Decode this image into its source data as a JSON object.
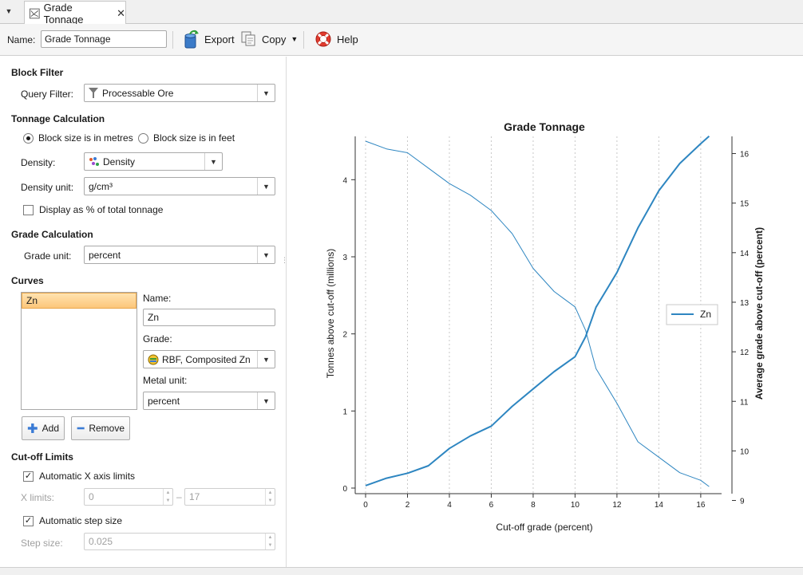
{
  "tab": {
    "label": "Grade Tonnage",
    "close": "✕",
    "menu": "▼"
  },
  "toolbar": {
    "name_label": "Name:",
    "name_value": "Grade Tonnage",
    "export_label": "Export",
    "copy_label": "Copy",
    "help_label": "Help"
  },
  "block_filter": {
    "title": "Block Filter",
    "query_filter_label": "Query Filter:",
    "query_filter_value": "Processable Ore"
  },
  "tonnage": {
    "title": "Tonnage Calculation",
    "radio_metres": "Block size is in metres",
    "radio_feet": "Block size is in feet",
    "selected": "metres",
    "density_label": "Density:",
    "density_value": "Density",
    "density_unit_label": "Density unit:",
    "density_unit_value": "g/cm³",
    "display_pct_label": "Display as % of total tonnage",
    "display_pct_checked": false
  },
  "grade": {
    "title": "Grade Calculation",
    "grade_unit_label": "Grade unit:",
    "grade_unit_value": "percent"
  },
  "curves": {
    "title": "Curves",
    "items": [
      "Zn"
    ],
    "name_label": "Name:",
    "name_value": "Zn",
    "grade_label": "Grade:",
    "grade_value": "RBF, Composited Zn",
    "metal_unit_label": "Metal unit:",
    "metal_unit_value": "percent",
    "add_label": "Add",
    "remove_label": "Remove"
  },
  "cutoff": {
    "title": "Cut-off Limits",
    "auto_x_label": "Automatic X axis limits",
    "auto_x_checked": true,
    "x_limits_label": "X limits:",
    "x_min": "0",
    "x_sep": "–",
    "x_max": "17",
    "auto_step_label": "Automatic step size",
    "auto_step_checked": true,
    "step_size_label": "Step size:",
    "step_size_value": "0.025"
  },
  "colors": {
    "series": "#2e86c1",
    "selection": "#fcc67a",
    "grid": "#c8c8c8"
  },
  "chart_data": {
    "type": "line",
    "title": "Grade Tonnage",
    "xlabel": "Cut-off grade (percent)",
    "ylabel_left": "Tonnes above cut-off (millions)",
    "ylabel_right": "Average grade above cut-off (percent)",
    "xlim": [
      0,
      16.5
    ],
    "ylim_left": [
      0,
      4.5
    ],
    "ylim_right": [
      9.25,
      16.25
    ],
    "x_ticks": [
      0,
      2,
      4,
      6,
      8,
      10,
      12,
      14,
      16
    ],
    "y_ticks_left": [
      0,
      1,
      2,
      3,
      4
    ],
    "y_ticks_right": [
      9,
      10,
      11,
      12,
      13,
      14,
      15,
      16
    ],
    "grid": "vertical dotted",
    "legend_position": "right",
    "series": [
      {
        "name": "Zn",
        "axis": "left",
        "line": "thin",
        "x": [
          0,
          1,
          2,
          3,
          4,
          5,
          6,
          7,
          8,
          9,
          9.5,
          10,
          10.5,
          11,
          12,
          13,
          14,
          15,
          16,
          16.4
        ],
        "y": [
          4.5,
          4.4,
          4.35,
          4.15,
          3.95,
          3.8,
          3.6,
          3.3,
          2.85,
          2.55,
          2.45,
          2.35,
          2.05,
          1.55,
          1.1,
          0.6,
          0.4,
          0.2,
          0.1,
          0.02
        ]
      },
      {
        "name": "Zn",
        "axis": "right",
        "line": "thick",
        "x": [
          0,
          1,
          2,
          3,
          4,
          5,
          6,
          7,
          8,
          9,
          10,
          10.5,
          11,
          12,
          13,
          14,
          15,
          16,
          16.4
        ],
        "y": [
          9.3,
          9.45,
          9.55,
          9.7,
          10.05,
          10.3,
          10.5,
          10.9,
          11.25,
          11.6,
          11.9,
          12.3,
          12.9,
          13.6,
          14.5,
          15.25,
          15.8,
          16.2,
          16.35
        ]
      }
    ]
  }
}
